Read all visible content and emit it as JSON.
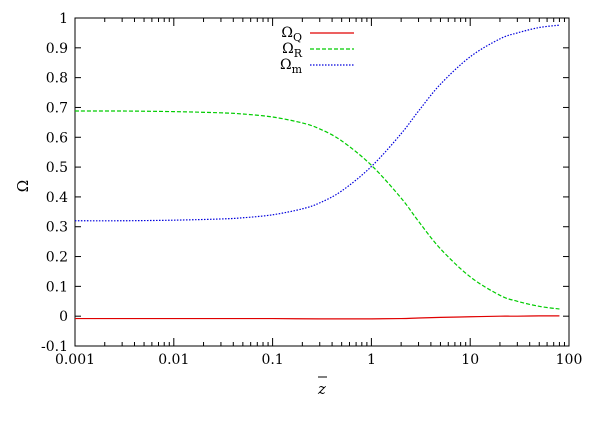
{
  "chart_data": {
    "type": "line",
    "title": "",
    "xlabel": "z",
    "xlabel_overline": true,
    "ylabel": "Ω",
    "xscale": "log",
    "xlim": [
      0.001,
      100
    ],
    "ylim": [
      -0.1,
      1
    ],
    "xticks": [
      0.001,
      0.01,
      0.1,
      1,
      10,
      100
    ],
    "xtick_labels": [
      "0.001",
      "0.01",
      "0.1",
      "1",
      "10",
      "100"
    ],
    "yticks": [
      -0.1,
      0,
      0.1,
      0.2,
      0.3,
      0.4,
      0.5,
      0.6,
      0.7,
      0.8,
      0.9,
      1
    ],
    "ytick_labels": [
      "-0.1",
      "0",
      "0.1",
      "0.2",
      "0.3",
      "0.4",
      "0.5",
      "0.6",
      "0.7",
      "0.8",
      "0.9",
      "1"
    ],
    "grid": false,
    "legend_position": "top-center",
    "series": [
      {
        "name": "Ω",
        "subscript": "Q",
        "color": "#e00000",
        "dash": "solid",
        "x": [
          0.001,
          0.003,
          0.01,
          0.03,
          0.1,
          0.3,
          1,
          2,
          3,
          5,
          10,
          20,
          30,
          50,
          80
        ],
        "y": [
          -0.008,
          -0.008,
          -0.008,
          -0.008,
          -0.008,
          -0.009,
          -0.009,
          -0.008,
          -0.006,
          -0.004,
          -0.002,
          0.0,
          0.0,
          0.001,
          0.001
        ]
      },
      {
        "name": "Ω",
        "subscript": "R",
        "color": "#00cc00",
        "dash": "dashed",
        "x": [
          0.001,
          0.003,
          0.01,
          0.03,
          0.05,
          0.1,
          0.2,
          0.3,
          0.5,
          1,
          2,
          3,
          5,
          10,
          20,
          30,
          50,
          80
        ],
        "y": [
          0.688,
          0.688,
          0.686,
          0.682,
          0.678,
          0.668,
          0.648,
          0.628,
          0.588,
          0.506,
          0.396,
          0.318,
          0.226,
          0.132,
          0.07,
          0.05,
          0.033,
          0.024
        ]
      },
      {
        "name": "Ω",
        "subscript": "m",
        "color": "#0000dd",
        "dash": "dotted",
        "x": [
          0.001,
          0.003,
          0.01,
          0.03,
          0.05,
          0.1,
          0.2,
          0.3,
          0.5,
          1,
          2,
          3,
          5,
          10,
          20,
          30,
          50,
          80
        ],
        "y": [
          0.32,
          0.32,
          0.322,
          0.326,
          0.33,
          0.34,
          0.36,
          0.38,
          0.42,
          0.502,
          0.612,
          0.688,
          0.778,
          0.87,
          0.93,
          0.95,
          0.968,
          0.976
        ]
      }
    ]
  }
}
